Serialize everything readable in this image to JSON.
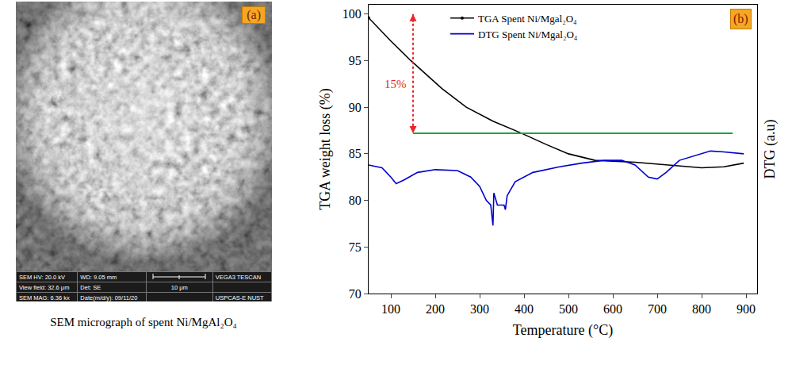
{
  "panel_a": {
    "type": "image",
    "label": "(a)",
    "caption": "SEM micrograph of spent Ni/MgAl₂O₄",
    "info_bar": [
      [
        "SEM HV: 20.0 kV",
        "WD: 9.05 mm",
        "",
        "VEGA3 TESCAN"
      ],
      [
        "View field: 32.6 μm",
        "Det: SE",
        "10 μm",
        ""
      ],
      [
        "SEM MAG: 6.36 kx",
        "Date(m/d/y): 09/11/20",
        "",
        "USPCAS-E NUST"
      ]
    ]
  },
  "chart_data": {
    "type": "line",
    "panel_label": "(b)",
    "xlabel": "Temperature (°C)",
    "ylabel": "TGA weight loss (%)",
    "y2label": "DTG (a.u)",
    "xlim": [
      50,
      925
    ],
    "xticks": [
      100,
      200,
      300,
      400,
      500,
      600,
      700,
      800,
      900
    ],
    "ylim": [
      70,
      101
    ],
    "yticks": [
      70,
      75,
      80,
      85,
      90,
      95,
      100
    ],
    "y2lim": [
      70,
      101
    ],
    "y2ticks": [],
    "legend": "top",
    "series": [
      {
        "name": "TGA Spent Ni/Mgal₂O₄",
        "color": "#000000",
        "axis": "y",
        "marker": "circle",
        "x": [
          50,
          100,
          145,
          215,
          270,
          330,
          390,
          450,
          500,
          560,
          650,
          720,
          800,
          850,
          895
        ],
        "values": [
          99.6,
          97.1,
          95.0,
          92.0,
          90.0,
          88.5,
          87.3,
          86.0,
          85.0,
          84.3,
          84.1,
          83.8,
          83.5,
          83.6,
          84.0
        ]
      },
      {
        "name": "DTG Spent Ni/Mgal₂O₄",
        "color": "#0000cc",
        "axis": "y2",
        "x": [
          50,
          80,
          100,
          112,
          130,
          160,
          200,
          250,
          280,
          300,
          315,
          325,
          330,
          332,
          340,
          355,
          358,
          362,
          380,
          420,
          480,
          530,
          580,
          620,
          650,
          680,
          700,
          720,
          750,
          800,
          820,
          850,
          895
        ],
        "values": [
          83.8,
          83.5,
          82.5,
          81.8,
          82.2,
          83.0,
          83.3,
          83.2,
          82.5,
          81.5,
          80.0,
          79.5,
          77.3,
          80.8,
          79.5,
          79.5,
          79.0,
          80.5,
          82.0,
          83.0,
          83.6,
          84.0,
          84.3,
          84.3,
          83.8,
          82.5,
          82.3,
          83.0,
          84.3,
          85.0,
          85.3,
          85.2,
          85.0
        ]
      }
    ],
    "annotations": [
      {
        "text": "15%",
        "x": 140,
        "y": 92.5,
        "color": "#e8262b"
      }
    ],
    "bracket": {
      "x": 150,
      "y": [
        100,
        87.2
      ],
      "color": "#e8262b"
    },
    "hline": {
      "y": 87.2,
      "x": [
        150,
        870
      ],
      "color": "#1fa34a"
    }
  }
}
